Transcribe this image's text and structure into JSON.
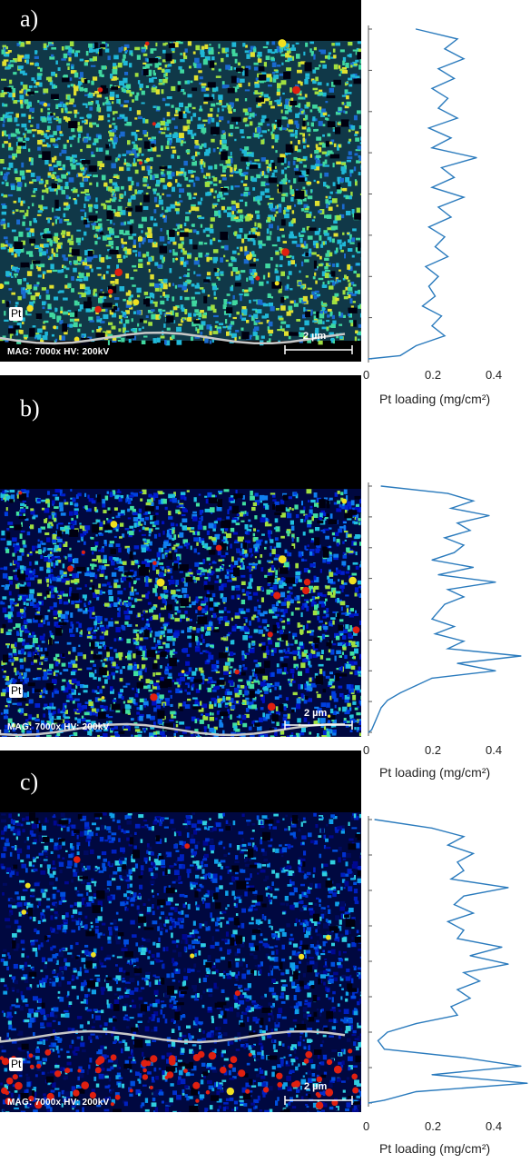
{
  "figure": {
    "x_axis_label": "Pt loading (mg/cm²)",
    "x_ticks": [
      "0",
      "0.2",
      "0.4"
    ],
    "colors": {
      "line": "#2b7bbd",
      "map_low": "#000060",
      "map_mid": "#22c0d8",
      "map_high": "#f0e020",
      "map_peak": "#e02010",
      "overlay_line": "#c8c8c8"
    }
  },
  "panels": [
    {
      "letter": "a)",
      "element_label": "Pt",
      "mag_text": "MAG: 7000x  HV: 200kV",
      "scale_text": "2 µm",
      "map_style": "dense-green-yellow"
    },
    {
      "letter": "b)",
      "element_label": "Pt",
      "mag_text": "MAG: 7000x  HV: 200kV",
      "scale_text": "2 µm",
      "map_style": "blue-green"
    },
    {
      "letter": "c)",
      "element_label": "Pt",
      "mag_text": "MAG: 7000x  HV: 200kV",
      "scale_text": "2 µm",
      "map_style": "sparse-blue"
    }
  ],
  "chart_data": [
    {
      "type": "line",
      "panel": "a)",
      "xlabel": "Pt loading (mg/cm²)",
      "xlim": [
        0,
        0.5
      ],
      "xticks": [
        0,
        0.2,
        0.4
      ],
      "ylabel": "",
      "orientation": "vertical-profile",
      "depth_fraction": [
        0.0,
        0.03,
        0.06,
        0.09,
        0.12,
        0.15,
        0.18,
        0.21,
        0.24,
        0.27,
        0.3,
        0.33,
        0.36,
        0.39,
        0.42,
        0.45,
        0.48,
        0.51,
        0.54,
        0.57,
        0.6,
        0.63,
        0.66,
        0.69,
        0.72,
        0.75,
        0.78,
        0.81,
        0.84,
        0.87,
        0.9,
        0.93,
        0.96,
        0.99,
        1.0
      ],
      "values": [
        0.15,
        0.28,
        0.24,
        0.3,
        0.22,
        0.27,
        0.2,
        0.25,
        0.22,
        0.28,
        0.19,
        0.26,
        0.2,
        0.34,
        0.23,
        0.27,
        0.2,
        0.3,
        0.22,
        0.26,
        0.19,
        0.24,
        0.21,
        0.25,
        0.18,
        0.22,
        0.19,
        0.21,
        0.17,
        0.23,
        0.2,
        0.24,
        0.15,
        0.1,
        0.0
      ]
    },
    {
      "type": "line",
      "panel": "b)",
      "xlabel": "Pt loading (mg/cm²)",
      "xlim": [
        0,
        0.5
      ],
      "xticks": [
        0,
        0.2,
        0.4
      ],
      "ylabel": "",
      "orientation": "vertical-profile",
      "depth_fraction": [
        0.0,
        0.03,
        0.06,
        0.09,
        0.12,
        0.15,
        0.18,
        0.21,
        0.24,
        0.27,
        0.3,
        0.33,
        0.36,
        0.39,
        0.42,
        0.45,
        0.48,
        0.51,
        0.54,
        0.57,
        0.6,
        0.63,
        0.66,
        0.69,
        0.72,
        0.75,
        0.78,
        0.81,
        0.84,
        0.87,
        0.9,
        0.93,
        0.96,
        0.99,
        1.0
      ],
      "values": [
        0.04,
        0.25,
        0.33,
        0.26,
        0.38,
        0.28,
        0.32,
        0.24,
        0.3,
        0.27,
        0.2,
        0.33,
        0.22,
        0.4,
        0.25,
        0.3,
        0.24,
        0.22,
        0.2,
        0.27,
        0.21,
        0.3,
        0.25,
        0.48,
        0.28,
        0.4,
        0.2,
        0.15,
        0.1,
        0.06,
        0.04,
        0.03,
        0.02,
        0.01,
        0.0
      ]
    },
    {
      "type": "line",
      "panel": "c)",
      "xlabel": "Pt loading (mg/cm²)",
      "xlim": [
        0,
        0.5
      ],
      "xticks": [
        0,
        0.2,
        0.4
      ],
      "ylabel": "",
      "orientation": "vertical-profile",
      "depth_fraction": [
        0.0,
        0.03,
        0.06,
        0.09,
        0.12,
        0.15,
        0.18,
        0.21,
        0.24,
        0.27,
        0.3,
        0.33,
        0.36,
        0.39,
        0.42,
        0.45,
        0.48,
        0.51,
        0.54,
        0.57,
        0.6,
        0.63,
        0.66,
        0.69,
        0.72,
        0.75,
        0.78,
        0.81,
        0.84,
        0.87,
        0.9,
        0.93,
        0.96,
        0.99,
        1.0
      ],
      "values": [
        0.02,
        0.2,
        0.3,
        0.25,
        0.33,
        0.28,
        0.3,
        0.26,
        0.44,
        0.3,
        0.27,
        0.33,
        0.25,
        0.3,
        0.28,
        0.42,
        0.32,
        0.44,
        0.3,
        0.35,
        0.28,
        0.32,
        0.26,
        0.28,
        0.15,
        0.06,
        0.03,
        0.05,
        0.3,
        0.48,
        0.2,
        0.5,
        0.15,
        0.05,
        0.0
      ]
    }
  ]
}
